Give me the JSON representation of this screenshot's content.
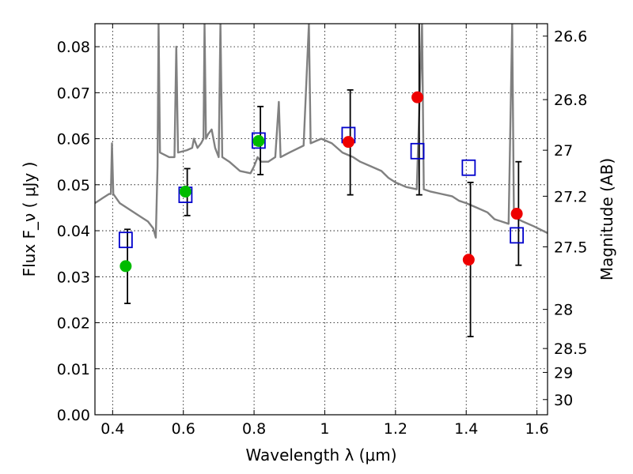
{
  "chart_data": {
    "type": "scatter",
    "xlabel": "Wavelength  λ (μm)",
    "ylabel": "Flux  F_ν  ( μJy )",
    "ylabel_right": "Magnitude (AB)",
    "xlim": [
      0.35,
      1.63
    ],
    "ylim": [
      0.0,
      0.085
    ],
    "grid": true,
    "x_ticks": [
      0.4,
      0.6,
      0.8,
      1.0,
      1.2,
      1.4,
      1.6
    ],
    "x_tick_labels": [
      "0.4",
      "0.6",
      "0.8",
      "1",
      "1.2",
      "1.4",
      "1.6"
    ],
    "y_ticks": [
      0.0,
      0.01,
      0.02,
      0.03,
      0.04,
      0.05,
      0.06,
      0.07,
      0.08
    ],
    "y_tick_labels": [
      "0.00",
      "0.01",
      "0.02",
      "0.03",
      "0.04",
      "0.05",
      "0.06",
      "0.07",
      "0.08"
    ],
    "mag_ticks": [
      {
        "flux": 0.0823,
        "label": "26.6"
      },
      {
        "flux": 0.0685,
        "label": "26.8"
      },
      {
        "flux": 0.0575,
        "label": "27"
      },
      {
        "flux": 0.0475,
        "label": "27.2"
      },
      {
        "flux": 0.0365,
        "label": "27.5"
      },
      {
        "flux": 0.0229,
        "label": "28"
      },
      {
        "flux": 0.0144,
        "label": "28.5"
      },
      {
        "flux": 0.0092,
        "label": "29"
      },
      {
        "flux": 0.0033,
        "label": "30"
      }
    ],
    "model_spectrum": {
      "color": "#808080",
      "points": [
        [
          0.35,
          0.046
        ],
        [
          0.37,
          0.047
        ],
        [
          0.39,
          0.048
        ],
        [
          0.395,
          0.048
        ],
        [
          0.398,
          0.059
        ],
        [
          0.402,
          0.048
        ],
        [
          0.42,
          0.046
        ],
        [
          0.45,
          0.0445
        ],
        [
          0.48,
          0.043
        ],
        [
          0.5,
          0.042
        ],
        [
          0.515,
          0.0405
        ],
        [
          0.522,
          0.0385
        ],
        [
          0.527,
          0.054
        ],
        [
          0.53,
          0.087
        ],
        [
          0.534,
          0.057
        ],
        [
          0.56,
          0.056
        ],
        [
          0.575,
          0.056
        ],
        [
          0.58,
          0.08
        ],
        [
          0.585,
          0.057
        ],
        [
          0.61,
          0.0575
        ],
        [
          0.625,
          0.058
        ],
        [
          0.63,
          0.06
        ],
        [
          0.64,
          0.058
        ],
        [
          0.65,
          0.059
        ],
        [
          0.657,
          0.06
        ],
        [
          0.66,
          0.087
        ],
        [
          0.664,
          0.06
        ],
        [
          0.67,
          0.061
        ],
        [
          0.68,
          0.062
        ],
        [
          0.69,
          0.058
        ],
        [
          0.7,
          0.056
        ],
        [
          0.705,
          0.087
        ],
        [
          0.71,
          0.056
        ],
        [
          0.73,
          0.055
        ],
        [
          0.76,
          0.053
        ],
        [
          0.79,
          0.0525
        ],
        [
          0.8,
          0.054
        ],
        [
          0.81,
          0.056
        ],
        [
          0.82,
          0.055
        ],
        [
          0.84,
          0.055
        ],
        [
          0.86,
          0.056
        ],
        [
          0.87,
          0.068
        ],
        [
          0.875,
          0.056
        ],
        [
          0.9,
          0.057
        ],
        [
          0.94,
          0.0585
        ],
        [
          0.955,
          0.087
        ],
        [
          0.96,
          0.059
        ],
        [
          0.99,
          0.06
        ],
        [
          1.02,
          0.059
        ],
        [
          1.05,
          0.057
        ],
        [
          1.08,
          0.056
        ],
        [
          1.1,
          0.055
        ],
        [
          1.13,
          0.054
        ],
        [
          1.16,
          0.053
        ],
        [
          1.18,
          0.0515
        ],
        [
          1.2,
          0.0505
        ],
        [
          1.23,
          0.0495
        ],
        [
          1.26,
          0.049
        ],
        [
          1.275,
          0.087
        ],
        [
          1.28,
          0.049
        ],
        [
          1.3,
          0.0485
        ],
        [
          1.33,
          0.048
        ],
        [
          1.36,
          0.0475
        ],
        [
          1.38,
          0.0465
        ],
        [
          1.4,
          0.046
        ],
        [
          1.43,
          0.045
        ],
        [
          1.46,
          0.044
        ],
        [
          1.48,
          0.0425
        ],
        [
          1.5,
          0.042
        ],
        [
          1.52,
          0.0415
        ],
        [
          1.53,
          0.087
        ],
        [
          1.535,
          0.043
        ],
        [
          1.56,
          0.042
        ],
        [
          1.59,
          0.041
        ],
        [
          1.63,
          0.0395
        ]
      ]
    },
    "model_photometry": {
      "color": "#0000cc",
      "marker": "open-square",
      "x": [
        0.437,
        0.606,
        0.813,
        1.067,
        1.262,
        1.407,
        1.543
      ],
      "y": [
        0.038,
        0.0478,
        0.0596,
        0.0608,
        0.0573,
        0.0537,
        0.039
      ]
    },
    "observed_green": {
      "color": "#00bb00",
      "marker": "filled-circle",
      "x": [
        0.437,
        0.606,
        0.813
      ],
      "y": [
        0.0323,
        0.0485,
        0.0595
      ]
    },
    "observed_red": {
      "color": "#ee0000",
      "marker": "filled-circle",
      "x": [
        1.067,
        1.262,
        1.407,
        1.543
      ],
      "y": [
        0.0593,
        0.069,
        0.0337,
        0.0437
      ]
    },
    "error_bars": {
      "color": "#000000",
      "items": [
        {
          "x": 0.442,
          "lo": 0.0242,
          "hi": 0.0403
        },
        {
          "x": 0.611,
          "lo": 0.0433,
          "hi": 0.0535
        },
        {
          "x": 0.818,
          "lo": 0.0522,
          "hi": 0.067
        },
        {
          "x": 1.072,
          "lo": 0.0478,
          "hi": 0.0706
        },
        {
          "x": 1.267,
          "lo": 0.0478,
          "hi": 0.087
        },
        {
          "x": 1.412,
          "lo": 0.017,
          "hi": 0.0505
        },
        {
          "x": 1.548,
          "lo": 0.0325,
          "hi": 0.055
        }
      ]
    }
  }
}
